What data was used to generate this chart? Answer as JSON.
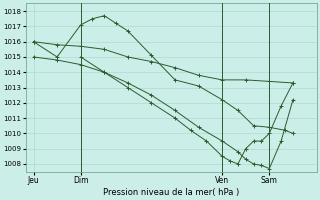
{
  "background_color": "#cceee8",
  "grid_color": "#aaddcc",
  "line_color": "#2d5a2d",
  "xlabel": "Pression niveau de la mer( hPa )",
  "ylim": [
    1007.5,
    1018.5
  ],
  "yticks": [
    1008,
    1009,
    1010,
    1011,
    1012,
    1013,
    1014,
    1015,
    1016,
    1017,
    1018
  ],
  "xtick_labels": [
    "Jeu",
    "Dim",
    "Ven",
    "Sam"
  ],
  "xtick_positions": [
    0,
    12,
    48,
    60
  ],
  "xlim": [
    -2,
    72
  ],
  "vline_positions": [
    12,
    48,
    60
  ],
  "marker": "+",
  "series": [
    {
      "x": [
        0,
        6,
        12,
        18,
        24,
        30,
        36,
        42,
        48,
        54,
        60,
        66
      ],
      "y": [
        1016.0,
        1015.8,
        1015.7,
        1015.5,
        1015.0,
        1014.7,
        1014.3,
        1013.8,
        1013.5,
        1013.5,
        1013.4,
        1013.3
      ]
    },
    {
      "x": [
        0,
        6,
        12,
        15,
        18,
        21,
        24,
        30,
        36,
        42,
        48,
        52,
        56,
        60,
        64,
        66
      ],
      "y": [
        1016.0,
        1015.0,
        1017.1,
        1017.5,
        1017.7,
        1017.2,
        1016.7,
        1015.1,
        1013.5,
        1013.1,
        1012.2,
        1011.5,
        1010.5,
        1010.4,
        1010.2,
        1010.0
      ]
    },
    {
      "x": [
        0,
        6,
        12,
        18,
        24,
        30,
        36,
        42,
        48,
        52,
        54,
        56,
        58,
        60,
        63,
        66
      ],
      "y": [
        1015.0,
        1014.8,
        1014.5,
        1014.0,
        1013.3,
        1012.5,
        1011.5,
        1010.4,
        1009.5,
        1008.8,
        1008.3,
        1008.0,
        1007.9,
        1007.7,
        1009.5,
        1012.2
      ]
    },
    {
      "x": [
        12,
        18,
        24,
        30,
        36,
        40,
        44,
        48,
        50,
        52,
        54,
        56,
        58,
        60,
        63,
        66
      ],
      "y": [
        1015.0,
        1014.0,
        1013.0,
        1012.0,
        1011.0,
        1010.2,
        1009.5,
        1008.5,
        1008.2,
        1008.0,
        1009.0,
        1009.5,
        1009.5,
        1010.0,
        1011.8,
        1013.3
      ]
    }
  ]
}
